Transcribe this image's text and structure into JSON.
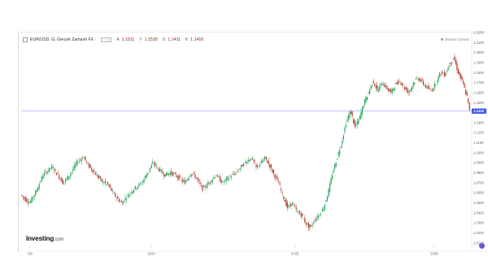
{
  "header": {
    "symbol_text": "EUR/USD, G, Gerçek Zamanlı FX ·",
    "open_label": "A",
    "open_value": "1.1511",
    "high_label": "Y",
    "high_value": "1.1530",
    "low_label": "D",
    "low_value": "1.1411",
    "close_label": "K",
    "close_value": "1.1416"
  },
  "market_status": "Market Closed",
  "brand": {
    "name": "Investing",
    "suffix": ".com"
  },
  "colors": {
    "up": "#26a65b",
    "down": "#b13a2e",
    "price_line": "#7f86ff",
    "price_badge": "#3d57e8"
  },
  "chart_data": {
    "type": "candlestick",
    "title": "EUR/USD, G, Gerçek Zamanlı FX",
    "ylim": [
      1.0075,
      1.2225
    ],
    "yticks": [
      1.22,
      1.21,
      1.2,
      1.19,
      1.18,
      1.17,
      1.16,
      1.15,
      1.14,
      1.13,
      1.12,
      1.11,
      1.1,
      1.09,
      1.08,
      1.07,
      1.06,
      1.05,
      1.04,
      1.03,
      1.02,
      1.01
    ],
    "ytick_labels": [
      "1.2200",
      "1.2100",
      "1.2000",
      "1.1900",
      "1.1800",
      "1.1700",
      "1.1600",
      "1.1500",
      "1.1400",
      "1.1300",
      "1.1200",
      "1.1100",
      "1.1000",
      "1.0900",
      "1.0800",
      "1.0700",
      "1.0600",
      "1.0500",
      "1.0400",
      "1.0300",
      "1.0200",
      "1.0100"
    ],
    "x_labels": [
      "Eki",
      "2024",
      "2025",
      "2026"
    ],
    "x_label_positions": [
      0.02,
      0.29,
      0.61,
      0.92
    ],
    "current_price": 1.1416,
    "current_price_label": "1.1416",
    "grid": false,
    "path": [
      [
        0.0,
        1.058
      ],
      [
        0.02,
        1.05
      ],
      [
        0.035,
        1.062
      ],
      [
        0.05,
        1.078
      ],
      [
        0.07,
        1.086
      ],
      [
        0.08,
        1.08
      ],
      [
        0.095,
        1.07
      ],
      [
        0.11,
        1.078
      ],
      [
        0.125,
        1.09
      ],
      [
        0.14,
        1.096
      ],
      [
        0.15,
        1.088
      ],
      [
        0.165,
        1.08
      ],
      [
        0.18,
        1.072
      ],
      [
        0.195,
        1.068
      ],
      [
        0.21,
        1.057
      ],
      [
        0.225,
        1.05
      ],
      [
        0.24,
        1.058
      ],
      [
        0.255,
        1.065
      ],
      [
        0.27,
        1.07
      ],
      [
        0.285,
        1.082
      ],
      [
        0.295,
        1.09
      ],
      [
        0.305,
        1.085
      ],
      [
        0.32,
        1.078
      ],
      [
        0.335,
        1.08
      ],
      [
        0.35,
        1.076
      ],
      [
        0.365,
        1.07
      ],
      [
        0.38,
        1.08
      ],
      [
        0.39,
        1.076
      ],
      [
        0.405,
        1.064
      ],
      [
        0.42,
        1.07
      ],
      [
        0.435,
        1.078
      ],
      [
        0.45,
        1.07
      ],
      [
        0.465,
        1.076
      ],
      [
        0.48,
        1.08
      ],
      [
        0.495,
        1.088
      ],
      [
        0.505,
        1.092
      ],
      [
        0.515,
        1.095
      ],
      [
        0.525,
        1.085
      ],
      [
        0.535,
        1.09
      ],
      [
        0.545,
        1.095
      ],
      [
        0.555,
        1.087
      ],
      [
        0.565,
        1.078
      ],
      [
        0.575,
        1.07
      ],
      [
        0.585,
        1.056
      ],
      [
        0.595,
        1.045
      ],
      [
        0.605,
        1.05
      ],
      [
        0.615,
        1.042
      ],
      [
        0.625,
        1.038
      ],
      [
        0.635,
        1.03
      ],
      [
        0.645,
        1.025
      ],
      [
        0.655,
        1.033
      ],
      [
        0.665,
        1.038
      ],
      [
        0.675,
        1.045
      ],
      [
        0.685,
        1.06
      ],
      [
        0.695,
        1.08
      ],
      [
        0.705,
        1.095
      ],
      [
        0.715,
        1.11
      ],
      [
        0.725,
        1.13
      ],
      [
        0.735,
        1.142
      ],
      [
        0.745,
        1.125
      ],
      [
        0.755,
        1.135
      ],
      [
        0.765,
        1.15
      ],
      [
        0.775,
        1.16
      ],
      [
        0.785,
        1.172
      ],
      [
        0.795,
        1.162
      ],
      [
        0.805,
        1.17
      ],
      [
        0.815,
        1.165
      ],
      [
        0.825,
        1.16
      ],
      [
        0.835,
        1.168
      ],
      [
        0.845,
        1.172
      ],
      [
        0.855,
        1.165
      ],
      [
        0.865,
        1.16
      ],
      [
        0.875,
        1.17
      ],
      [
        0.885,
        1.175
      ],
      [
        0.895,
        1.17
      ],
      [
        0.905,
        1.165
      ],
      [
        0.915,
        1.162
      ],
      [
        0.925,
        1.17
      ],
      [
        0.935,
        1.18
      ],
      [
        0.945,
        1.178
      ],
      [
        0.955,
        1.188
      ],
      [
        0.965,
        1.195
      ],
      [
        0.975,
        1.18
      ],
      [
        0.985,
        1.17
      ],
      [
        0.995,
        1.155
      ],
      [
        1.0,
        1.1416
      ]
    ]
  }
}
